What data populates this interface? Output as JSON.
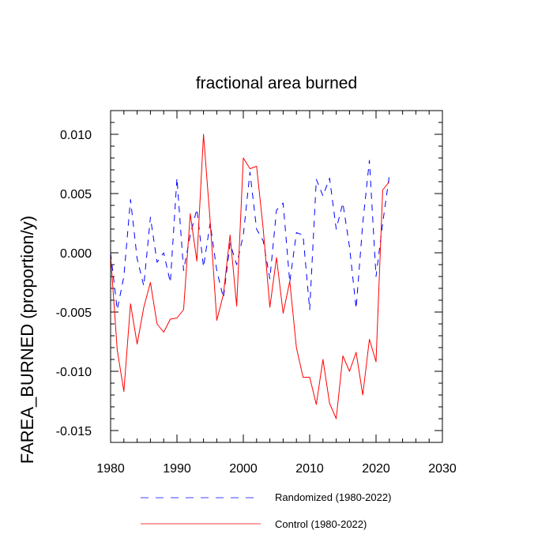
{
  "chart_data": {
    "type": "line",
    "title": "fractional area burned",
    "xlabel": "",
    "ylabel": "FAREA_BURNED  (proportion/y)",
    "xlim": [
      1980,
      2030
    ],
    "ylim": [
      -0.016,
      0.012
    ],
    "xticks": [
      1980,
      1990,
      2000,
      2010,
      2020,
      2030
    ],
    "yticks": [
      -0.015,
      -0.01,
      -0.005,
      0.0,
      0.005,
      0.01
    ],
    "ytick_labels": [
      "-0.015",
      "-0.010",
      "-0.005",
      "0.000",
      "0.005",
      "0.010"
    ],
    "x": [
      1980,
      1981,
      1982,
      1983,
      1984,
      1985,
      1986,
      1987,
      1988,
      1989,
      1990,
      1991,
      1992,
      1993,
      1994,
      1995,
      1996,
      1997,
      1998,
      1999,
      2000,
      2001,
      2002,
      2003,
      2004,
      2005,
      2006,
      2007,
      2008,
      2009,
      2010,
      2011,
      2012,
      2013,
      2014,
      2015,
      2016,
      2017,
      2018,
      2019,
      2020,
      2021,
      2022
    ],
    "series": [
      {
        "name": "Randomized (1980-2022)",
        "color": "#0000ff",
        "dash": "dashed",
        "values": [
          0.0,
          -0.0048,
          -0.002,
          0.0045,
          -0.0005,
          -0.0028,
          0.003,
          -0.0008,
          0.0,
          -0.0025,
          0.0063,
          -0.0015,
          0.0015,
          0.0037,
          -0.0012,
          0.0025,
          -0.0015,
          -0.0038,
          0.0008,
          -0.001,
          0.0015,
          0.0068,
          0.002,
          0.001,
          -0.0022,
          0.0036,
          0.0042,
          -0.0025,
          0.0017,
          0.0015,
          -0.0048,
          0.0062,
          0.0048,
          0.0063,
          0.002,
          0.0042,
          0.0005,
          -0.0047,
          0.0025,
          0.0078,
          -0.002,
          0.0025,
          0.0065
        ]
      },
      {
        "name": "Control (1980-2022)",
        "color": "#ff0000",
        "dash": "solid",
        "values": [
          -0.0002,
          -0.0082,
          -0.0117,
          -0.0043,
          -0.0077,
          -0.0046,
          -0.0025,
          -0.006,
          -0.0067,
          -0.0056,
          -0.0055,
          -0.0048,
          0.0033,
          -0.0007,
          0.01,
          0.0027,
          -0.0057,
          -0.0035,
          0.0015,
          -0.0045,
          0.008,
          0.0071,
          0.0073,
          0.002,
          -0.0046,
          -0.0004,
          -0.0051,
          -0.0024,
          -0.008,
          -0.0105,
          -0.0105,
          -0.0128,
          -0.009,
          -0.0127,
          -0.014,
          -0.0087,
          -0.01,
          -0.0084,
          -0.012,
          -0.0073,
          -0.0092,
          0.0053,
          0.006
        ]
      }
    ],
    "legend_position": "bottom"
  }
}
